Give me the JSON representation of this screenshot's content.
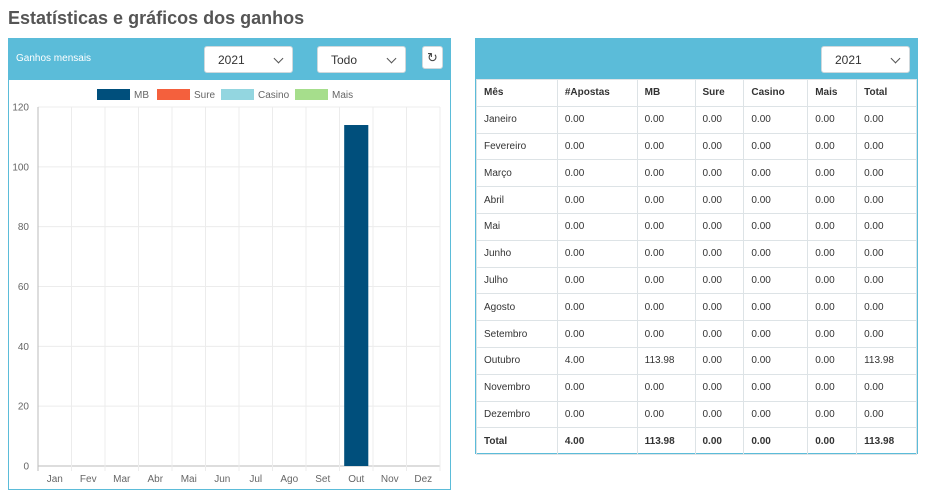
{
  "page": {
    "title": "Estatísticas e gráficos dos ganhos"
  },
  "left_panel": {
    "title": "Ganhos mensais",
    "year_select": "2021",
    "filter_select": "Todo",
    "refresh_icon": "refresh-icon"
  },
  "right_panel": {
    "year_select": "2021"
  },
  "colors": {
    "header": "#5bbcd9",
    "mb": "#004f7c",
    "sure": "#f4603d",
    "casino": "#93d6e0",
    "mais": "#a6de8c"
  },
  "chart_data": {
    "type": "bar",
    "categories": [
      "Jan",
      "Fev",
      "Mar",
      "Abr",
      "Mai",
      "Jun",
      "Jul",
      "Ago",
      "Set",
      "Out",
      "Nov",
      "Dez"
    ],
    "series": [
      {
        "name": "MB",
        "color": "#004f7c",
        "values": [
          0,
          0,
          0,
          0,
          0,
          0,
          0,
          0,
          0,
          113.98,
          0,
          0
        ]
      },
      {
        "name": "Sure",
        "color": "#f4603d",
        "values": [
          0,
          0,
          0,
          0,
          0,
          0,
          0,
          0,
          0,
          0,
          0,
          0
        ]
      },
      {
        "name": "Casino",
        "color": "#93d6e0",
        "values": [
          0,
          0,
          0,
          0,
          0,
          0,
          0,
          0,
          0,
          0,
          0,
          0
        ]
      },
      {
        "name": "Mais",
        "color": "#a6de8c",
        "values": [
          0,
          0,
          0,
          0,
          0,
          0,
          0,
          0,
          0,
          0,
          0,
          0
        ]
      }
    ],
    "yticks": [
      "0",
      "20",
      "40",
      "60",
      "80",
      "100",
      "120"
    ],
    "ylim": [
      0,
      120
    ],
    "stacked": true,
    "grid": true,
    "legend": "top-center"
  },
  "table": {
    "headers": [
      "Mês",
      "#Apostas",
      "MB",
      "Sure",
      "Casino",
      "Mais",
      "Total"
    ],
    "rows": [
      [
        "Janeiro",
        "0.00",
        "0.00",
        "0.00",
        "0.00",
        "0.00",
        "0.00"
      ],
      [
        "Fevereiro",
        "0.00",
        "0.00",
        "0.00",
        "0.00",
        "0.00",
        "0.00"
      ],
      [
        "Março",
        "0.00",
        "0.00",
        "0.00",
        "0.00",
        "0.00",
        "0.00"
      ],
      [
        "Abril",
        "0.00",
        "0.00",
        "0.00",
        "0.00",
        "0.00",
        "0.00"
      ],
      [
        "Mai",
        "0.00",
        "0.00",
        "0.00",
        "0.00",
        "0.00",
        "0.00"
      ],
      [
        "Junho",
        "0.00",
        "0.00",
        "0.00",
        "0.00",
        "0.00",
        "0.00"
      ],
      [
        "Julho",
        "0.00",
        "0.00",
        "0.00",
        "0.00",
        "0.00",
        "0.00"
      ],
      [
        "Agosto",
        "0.00",
        "0.00",
        "0.00",
        "0.00",
        "0.00",
        "0.00"
      ],
      [
        "Setembro",
        "0.00",
        "0.00",
        "0.00",
        "0.00",
        "0.00",
        "0.00"
      ],
      [
        "Outubro",
        "4.00",
        "113.98",
        "0.00",
        "0.00",
        "0.00",
        "113.98"
      ],
      [
        "Novembro",
        "0.00",
        "0.00",
        "0.00",
        "0.00",
        "0.00",
        "0.00"
      ],
      [
        "Dezembro",
        "0.00",
        "0.00",
        "0.00",
        "0.00",
        "0.00",
        "0.00"
      ]
    ],
    "total": [
      "Total",
      "4.00",
      "113.98",
      "0.00",
      "0.00",
      "0.00",
      "113.98"
    ]
  }
}
